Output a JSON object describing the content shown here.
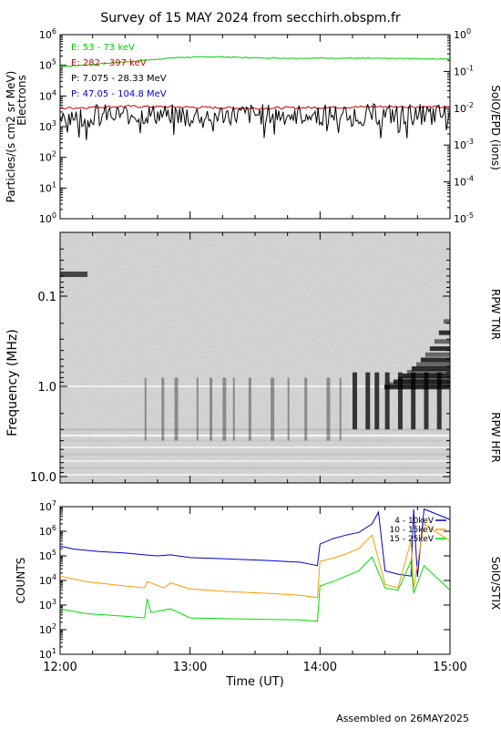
{
  "title": "Survey of 15 MAY 2024 from secchirh.obspm.fr",
  "footer": "Assembled on 26MAY2025",
  "xaxis": {
    "label": "Time (UT)",
    "ticks": [
      "12:00",
      "13:00",
      "14:00",
      "15:00"
    ],
    "range_hours": [
      12,
      15
    ]
  },
  "colors": {
    "green": "#00cc00",
    "red": "#cc0000",
    "black": "#000000",
    "blue": "#0000cc",
    "orange": "#ff9900",
    "stix_green": "#00dd00"
  },
  "chart_data": [
    {
      "type": "line",
      "panel": "particles",
      "ylabel": "Particles/(s cm2 sr MeV)",
      "ylabel2": "Electrons",
      "right_label": "SolO/EPD (ions)",
      "scale": "log",
      "left_ticks": [
        "10^0",
        "10^1",
        "10^2",
        "10^3",
        "10^4",
        "10^5",
        "10^6"
      ],
      "left_ylim": [
        1,
        1000000
      ],
      "right_ticks": [
        "10^-5",
        "10^-4",
        "10^-3",
        "10^-2",
        "10^-1",
        "10^0"
      ],
      "right_ylim": [
        1e-05,
        1
      ],
      "series": [
        {
          "name": "E: 53 - 73 keV",
          "color": "green",
          "x": [
            12.0,
            12.3,
            12.6,
            12.9,
            13.2,
            13.5,
            13.8,
            14.1,
            14.4,
            14.7,
            15.0
          ],
          "values": [
            90000,
            110000,
            140000,
            180000,
            190000,
            175000,
            170000,
            172000,
            168000,
            165000,
            160000
          ]
        },
        {
          "name": "E: 282 - 397 keV",
          "color": "red",
          "x": [
            12.0,
            12.5,
            13.0,
            13.5,
            14.0,
            14.5,
            15.0
          ],
          "values": [
            4000,
            4600,
            4300,
            4000,
            4200,
            4500,
            4300
          ]
        },
        {
          "name": "P: 7.075 - 28.33 MeV",
          "color": "black",
          "x": [
            12.0,
            13.0,
            14.0,
            15.0
          ],
          "values": [
            2500,
            2500,
            2500,
            2500
          ]
        },
        {
          "name": "P: 47.05 - 104.8 MeV",
          "color": "blue",
          "x": [],
          "values": []
        }
      ]
    },
    {
      "type": "heatmap",
      "panel": "radio",
      "ylabel": "Frequency (MHz)",
      "scale": "log-inverted",
      "ticks": [
        "0.1",
        "1.0",
        "10.0"
      ],
      "right_labels": [
        "RPW TNR",
        "RPW HFR"
      ]
    },
    {
      "type": "line",
      "panel": "stix",
      "ylabel": "COUNTS",
      "right_label": "SolO/STIX",
      "scale": "log",
      "ticks": [
        "10^1",
        "10^2",
        "10^3",
        "10^4",
        "10^5",
        "10^6",
        "10^7"
      ],
      "ylim": [
        10,
        10000000
      ],
      "series": [
        {
          "name": "4 - 10keV",
          "color": "blue",
          "x": [
            12.0,
            12.1,
            12.3,
            12.5,
            12.65,
            12.75,
            12.85,
            13.0,
            13.3,
            13.6,
            13.85,
            13.98,
            14.0,
            14.1,
            14.2,
            14.3,
            14.4,
            14.45,
            14.5,
            14.6,
            14.7,
            14.72,
            14.75,
            14.8,
            15.0
          ],
          "values": [
            250000,
            190000,
            150000,
            130000,
            110000,
            100000,
            110000,
            85000,
            75000,
            65000,
            55000,
            40000,
            300000,
            500000,
            700000,
            900000,
            2000000,
            6000000,
            25000,
            18000,
            15000,
            8000000,
            14000,
            8000000,
            3000000
          ]
        },
        {
          "name": "10 - 15keV",
          "color": "orange",
          "x": [
            12.0,
            12.2,
            12.5,
            12.65,
            12.67,
            12.8,
            12.85,
            13.0,
            13.3,
            13.6,
            13.85,
            13.98,
            14.0,
            14.1,
            14.2,
            14.3,
            14.4,
            14.5,
            14.6,
            14.7,
            14.72,
            14.8,
            15.0
          ],
          "values": [
            15000,
            9000,
            6000,
            5000,
            9000,
            5000,
            8000,
            4500,
            3500,
            3000,
            2500,
            2000,
            60000,
            80000,
            120000,
            200000,
            700000,
            7000,
            5000,
            400000,
            5000,
            2000000,
            400000
          ]
        },
        {
          "name": "15 - 25keV",
          "color": "stix_green",
          "x": [
            12.0,
            12.2,
            12.5,
            12.65,
            12.67,
            12.7,
            12.85,
            13.0,
            13.3,
            13.6,
            13.85,
            13.98,
            14.0,
            14.1,
            14.2,
            14.3,
            14.4,
            14.5,
            14.6,
            14.7,
            14.72,
            14.8,
            15.0
          ],
          "values": [
            700,
            450,
            350,
            300,
            1800,
            500,
            700,
            300,
            280,
            260,
            250,
            220,
            6000,
            9000,
            15000,
            25000,
            90000,
            5000,
            4000,
            60000,
            3000,
            40000,
            4000
          ]
        }
      ]
    }
  ]
}
